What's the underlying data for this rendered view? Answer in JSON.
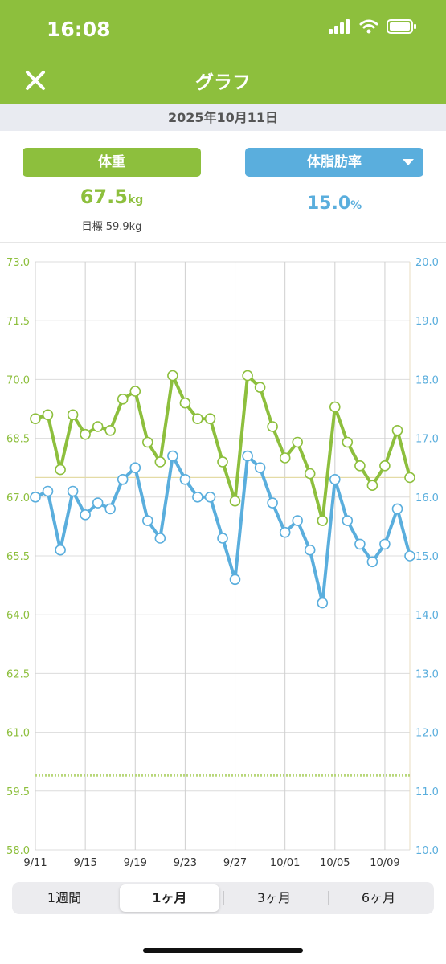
{
  "status": {
    "time": "16:08"
  },
  "header": {
    "title": "グラフ"
  },
  "date": "2025年10月11日",
  "summary": {
    "weight_label": "体重",
    "weight_value": "67.5",
    "weight_unit": "kg",
    "target": "目標 59.9kg",
    "fat_label": "体脂肪率",
    "fat_value": "15.0",
    "fat_unit": "%"
  },
  "colors": {
    "green": "#8dbf3d",
    "blue": "#5aaedd"
  },
  "periods": [
    "1週間",
    "1ヶ月",
    "3ヶ月",
    "6ヶ月"
  ],
  "active_period": "1ヶ月",
  "chart_data": {
    "type": "line",
    "x_ticks": [
      "9/11",
      "9/15",
      "9/19",
      "9/23",
      "9/27",
      "10/01",
      "10/05",
      "10/09"
    ],
    "x_range_days": [
      0,
      30
    ],
    "left_axis": {
      "ticks": [
        "73.0",
        "71.5",
        "70.0",
        "68.5",
        "67.0",
        "65.5",
        "64.0",
        "62.5",
        "61.0",
        "59.5",
        "58.0"
      ],
      "range": [
        58.0,
        73.0
      ]
    },
    "right_axis": {
      "ticks": [
        "20.0",
        "19.0",
        "18.0",
        "17.0",
        "16.0",
        "15.0",
        "14.0",
        "13.0",
        "12.0",
        "11.0",
        "10.0"
      ],
      "range": [
        10.0,
        20.0
      ]
    },
    "series": [
      {
        "axis": "left",
        "values": [
          69.0,
          69.1,
          67.7,
          69.1,
          68.6,
          68.8,
          68.7,
          69.5,
          69.7,
          68.4,
          67.9,
          70.1,
          69.4,
          69.0,
          69.0,
          67.9,
          66.9,
          70.1,
          69.8,
          68.8,
          68.0,
          68.4,
          67.6,
          66.4,
          69.3,
          68.4,
          67.8,
          67.3,
          67.8,
          68.7,
          67.5
        ]
      },
      {
        "axis": "right",
        "values": [
          16.0,
          16.1,
          15.1,
          16.1,
          15.7,
          15.9,
          15.8,
          16.3,
          16.5,
          15.6,
          15.3,
          16.7,
          16.3,
          16.0,
          16.0,
          15.3,
          14.6,
          16.7,
          16.5,
          15.9,
          15.4,
          15.6,
          15.1,
          14.2,
          16.3,
          15.6,
          15.2,
          14.9,
          15.2,
          15.8,
          15.0
        ]
      }
    ],
    "reference_lines": [
      {
        "axis": "left",
        "value": 67.5,
        "style": "solid-thin"
      },
      {
        "axis": "left",
        "value": 59.9,
        "style": "dotted"
      }
    ]
  }
}
